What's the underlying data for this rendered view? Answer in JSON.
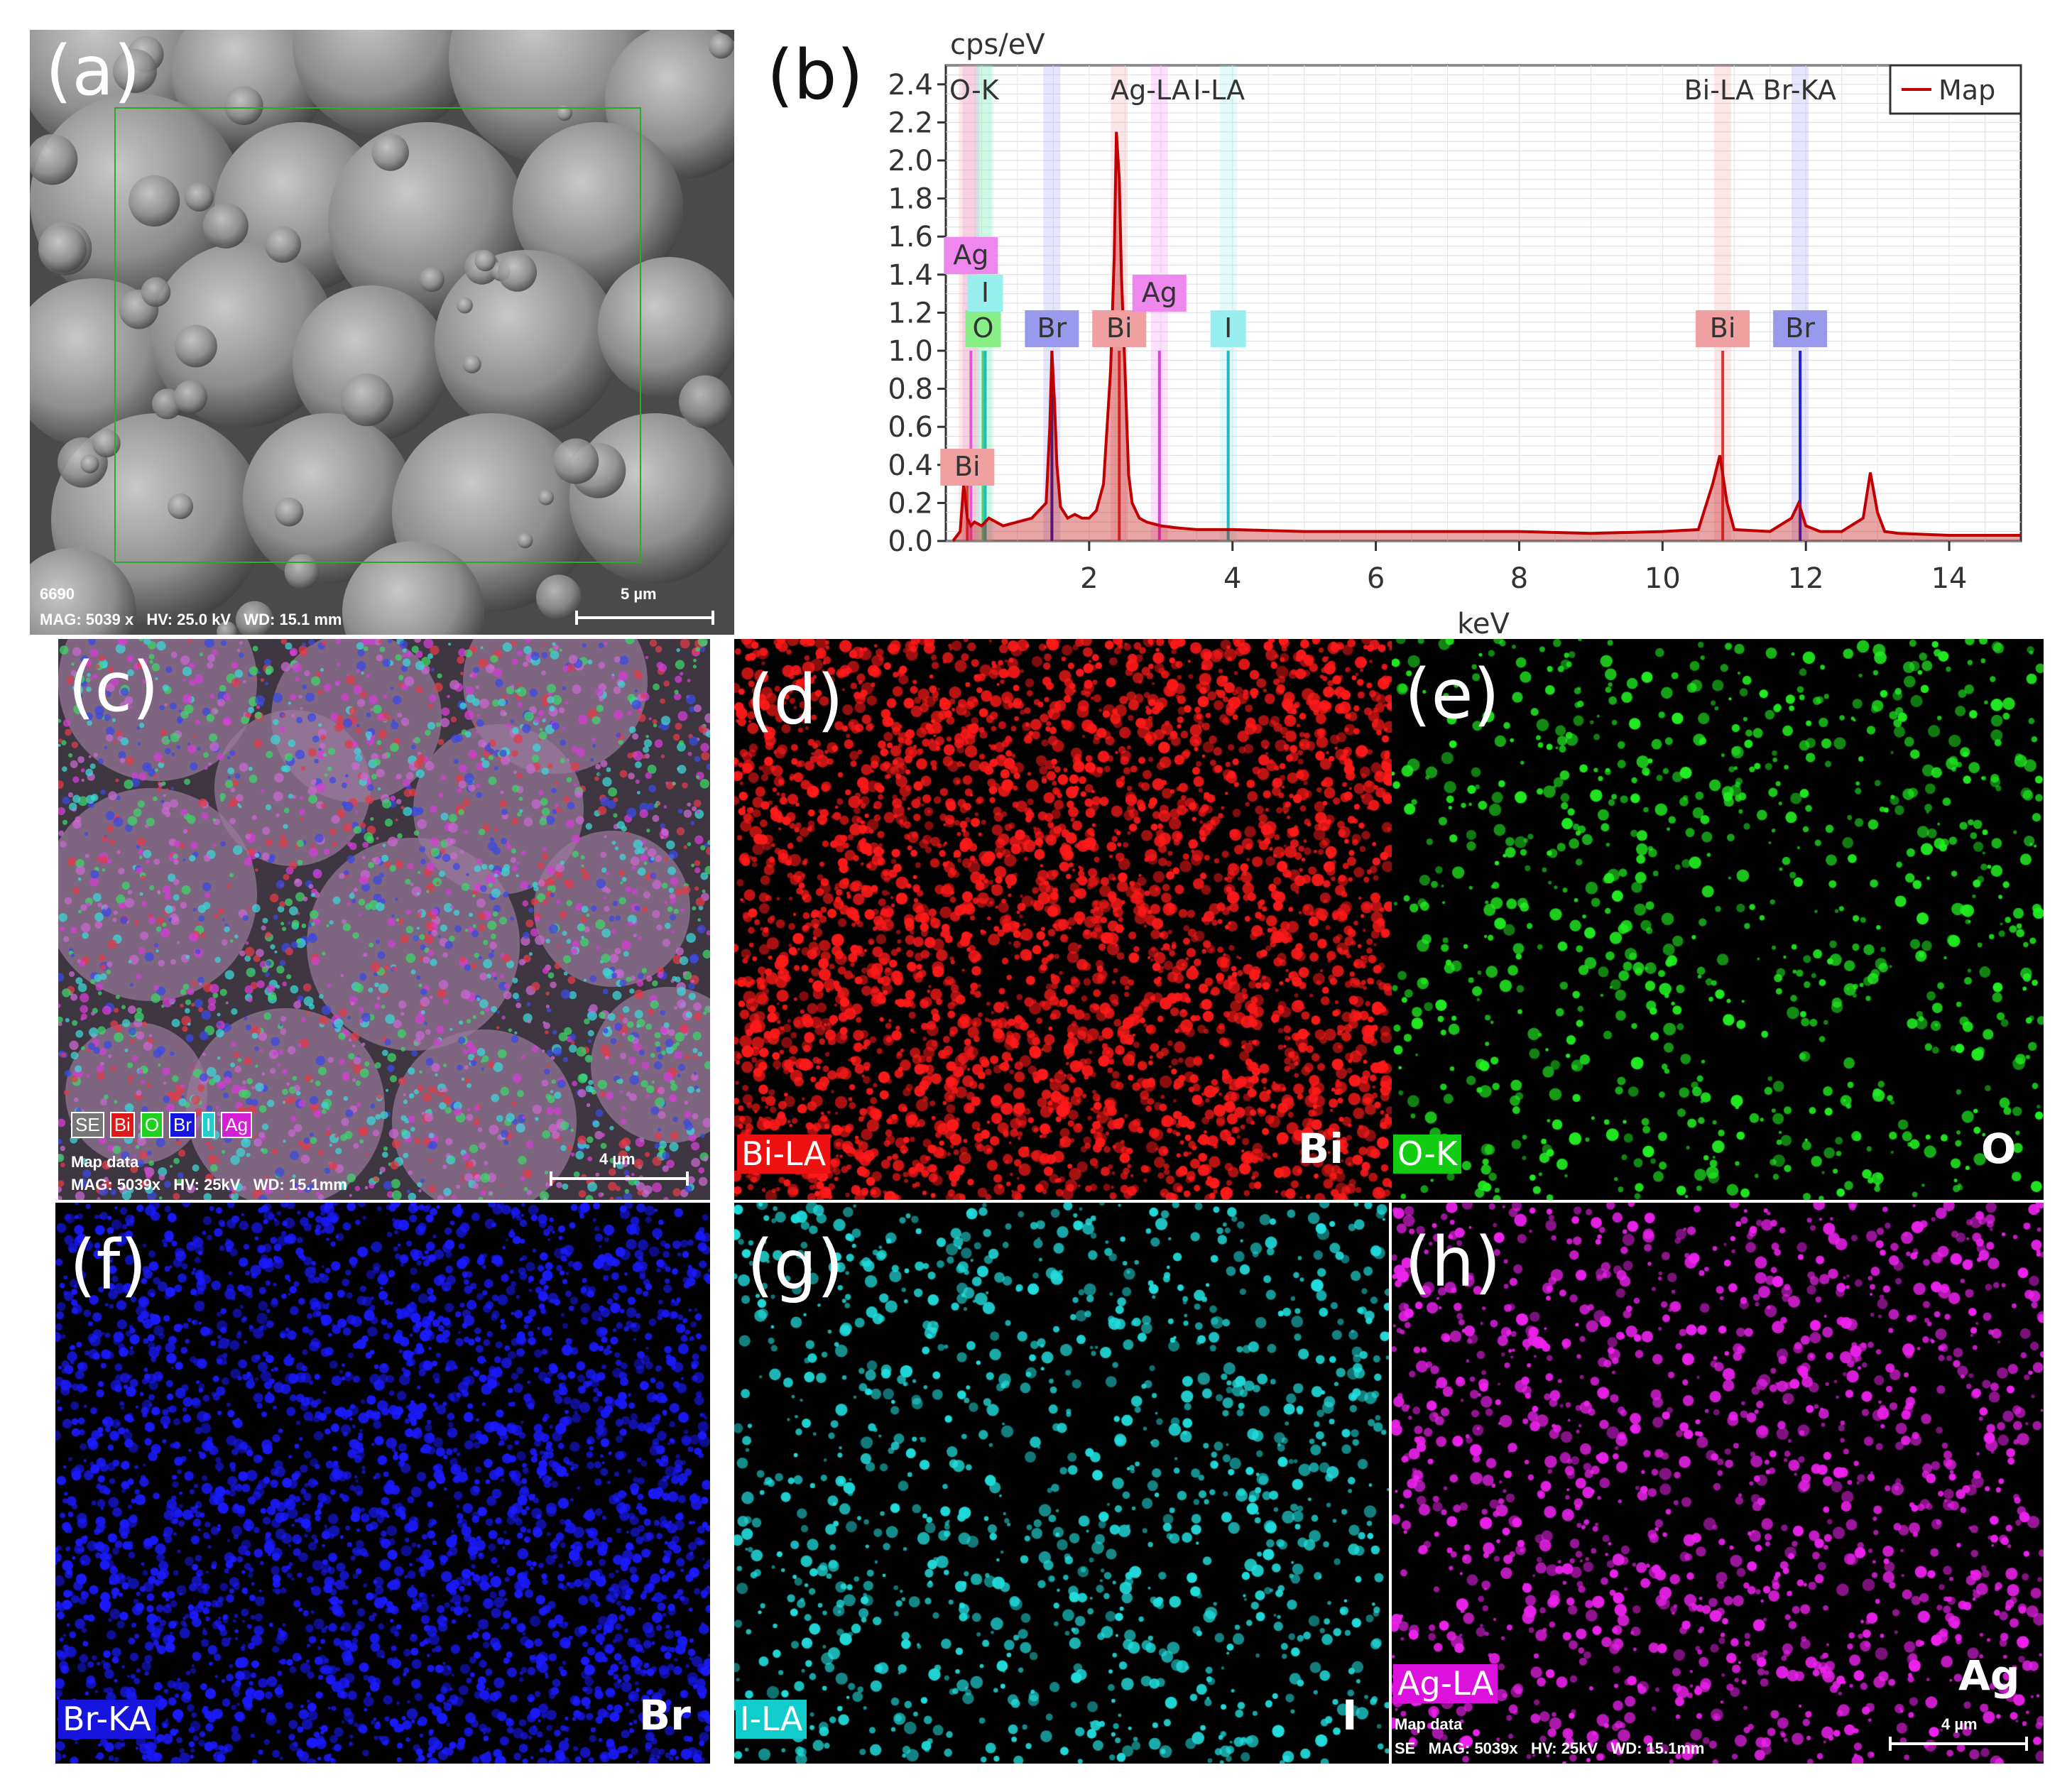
{
  "panels": {
    "a": {
      "label": "(a)",
      "sem_id": "6690",
      "info": "MAG: 5039 x   HV: 25.0 kV   WD: 15.1 mm",
      "scale": "5 µm"
    },
    "b": {
      "label": "(b)"
    },
    "c": {
      "label": "(c)",
      "legend": [
        "SE",
        "Bi",
        "O",
        "Br",
        "I",
        "Ag"
      ],
      "title": "Map data",
      "info": "MAG: 5039x   HV: 25kV   WD: 15.1mm",
      "scale": "4 µm"
    },
    "d": {
      "label": "(d)",
      "line_tag": "Bi-LA",
      "symbol": "Bi",
      "color": "#ff1a1a"
    },
    "e": {
      "label": "(e)",
      "line_tag": "O-K",
      "symbol": "O",
      "color": "#22ee22"
    },
    "f": {
      "label": "(f)",
      "line_tag": "Br-KA",
      "symbol": "Br",
      "color": "#1a1aff"
    },
    "g": {
      "label": "(g)",
      "line_tag": "I-LA",
      "symbol": "I",
      "color": "#22dddd"
    },
    "h": {
      "label": "(h)",
      "line_tag": "Ag-LA",
      "symbol": "Ag",
      "color": "#ee22ee",
      "title": "Map data",
      "info": "SE   MAG: 5039x   HV: 25kV   WD: 15.1mm",
      "scale": "4 µm"
    }
  },
  "chart_data": {
    "type": "line",
    "ylabel": "cps/eV",
    "xlabel": "keV",
    "xlim": [
      0,
      15
    ],
    "ylim": [
      0,
      2.5
    ],
    "yticks": [
      "0.0",
      "0.2",
      "0.4",
      "0.6",
      "0.8",
      "1.0",
      "1.2",
      "1.4",
      "1.6",
      "1.8",
      "2.0",
      "2.2",
      "2.4"
    ],
    "xticks": [
      "2",
      "4",
      "6",
      "8",
      "10",
      "12",
      "14"
    ],
    "legend": "Map",
    "legend_position": "top-right",
    "grid": true,
    "series": [
      {
        "name": "Map",
        "color": "#c00000",
        "x": [
          0.1,
          0.2,
          0.25,
          0.3,
          0.35,
          0.4,
          0.5,
          0.6,
          0.8,
          1.0,
          1.2,
          1.4,
          1.45,
          1.48,
          1.52,
          1.55,
          1.6,
          1.7,
          1.8,
          1.9,
          2.0,
          2.1,
          2.2,
          2.3,
          2.35,
          2.38,
          2.42,
          2.45,
          2.5,
          2.55,
          2.6,
          2.7,
          2.8,
          3.0,
          3.2,
          3.5,
          4.0,
          5.0,
          6.0,
          7.0,
          8.0,
          9.0,
          10.0,
          10.5,
          10.7,
          10.8,
          10.9,
          11.0,
          11.5,
          11.8,
          11.9,
          12.0,
          12.2,
          12.5,
          12.8,
          12.9,
          13.0,
          13.1,
          13.3,
          14.0,
          15.0
        ],
        "y": [
          0.0,
          0.05,
          0.3,
          0.12,
          0.08,
          0.1,
          0.08,
          0.12,
          0.08,
          0.1,
          0.12,
          0.2,
          0.6,
          1.0,
          0.7,
          0.4,
          0.18,
          0.12,
          0.14,
          0.12,
          0.12,
          0.16,
          0.3,
          0.9,
          1.5,
          2.15,
          1.9,
          1.4,
          0.9,
          0.35,
          0.2,
          0.12,
          0.1,
          0.08,
          0.07,
          0.06,
          0.06,
          0.05,
          0.05,
          0.05,
          0.05,
          0.04,
          0.05,
          0.06,
          0.3,
          0.45,
          0.2,
          0.06,
          0.05,
          0.12,
          0.2,
          0.08,
          0.05,
          0.05,
          0.12,
          0.36,
          0.15,
          0.05,
          0.04,
          0.03,
          0.03
        ]
      }
    ],
    "element_lines": [
      {
        "label": "O",
        "x": 0.52,
        "height": 1.0,
        "color": "#33cc55",
        "tag_color": "#88ee88"
      },
      {
        "label": "Ag",
        "x": 0.35,
        "height": 1.0,
        "color": "#dd44dd",
        "tag_color": "#ee88ee"
      },
      {
        "label": "I",
        "x": 0.55,
        "height": 1.0,
        "color": "#22bbbb",
        "tag_color": "#99eeee"
      },
      {
        "label": "Bi",
        "x": 0.3,
        "height": 0.3,
        "color": "#dd3333",
        "tag_color": "#f0a0a0"
      },
      {
        "label": "Br",
        "x": 1.48,
        "height": 1.0,
        "color": "#2222aa",
        "tag_color": "#9999ee"
      },
      {
        "label": "Bi",
        "x": 2.42,
        "height": 1.0,
        "color": "#dd3333",
        "tag_color": "#f0a0a0"
      },
      {
        "label": "Ag",
        "x": 2.98,
        "height": 1.0,
        "color": "#dd44dd",
        "tag_color": "#ee88ee"
      },
      {
        "label": "I",
        "x": 3.94,
        "height": 1.0,
        "color": "#22bbbb",
        "tag_color": "#99eeee"
      },
      {
        "label": "Bi",
        "x": 10.84,
        "height": 1.0,
        "color": "#dd3333",
        "tag_color": "#f0a0a0"
      },
      {
        "label": "Br",
        "x": 11.92,
        "height": 1.0,
        "color": "#2222cc",
        "tag_color": "#9999ee"
      }
    ],
    "top_annotations": [
      "O-K",
      "Ag-LA",
      "I-LA",
      "Bi-LA",
      "Br-KA"
    ]
  }
}
